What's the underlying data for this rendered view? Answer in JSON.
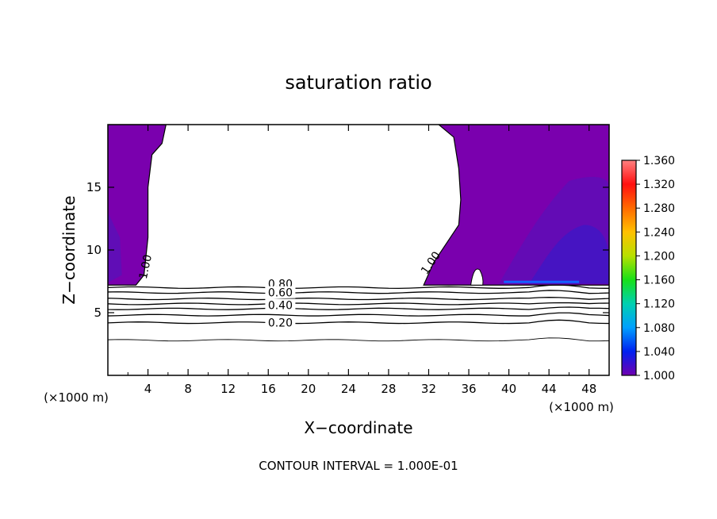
{
  "chart_data": {
    "type": "contour",
    "title": "saturation ratio",
    "xlabel": "X−coordinate",
    "ylabel": "Z−coordinate",
    "x_unit": "(×1000 m)",
    "footer": "CONTOUR INTERVAL = 1.000E-01",
    "xlim": [
      0,
      50
    ],
    "ylim": [
      0,
      20
    ],
    "xticks": [
      "4",
      "8",
      "12",
      "16",
      "20",
      "24",
      "28",
      "32",
      "36",
      "40",
      "44",
      "48"
    ],
    "xtick_values": [
      4,
      8,
      12,
      16,
      20,
      24,
      28,
      32,
      36,
      40,
      44,
      48
    ],
    "yticks": [
      "5",
      "10",
      "15"
    ],
    "ytick_values": [
      5,
      10,
      15
    ],
    "colorbar": {
      "labels": [
        "1.360",
        "1.320",
        "1.280",
        "1.240",
        "1.200",
        "1.160",
        "1.120",
        "1.080",
        "1.040",
        "1.000"
      ],
      "values": [
        1.36,
        1.32,
        1.28,
        1.24,
        1.2,
        1.16,
        1.12,
        1.08,
        1.04,
        1.0
      ],
      "colors": [
        "#ff8080",
        "#ff1010",
        "#ff6a00",
        "#ffc000",
        "#b8e000",
        "#18e018",
        "#00d0b0",
        "#00a0ff",
        "#0020f0",
        "#7000b0"
      ]
    },
    "contour_labels": [
      "0.80",
      "0.60",
      "0.40",
      "0.20",
      "1.00",
      "1.00"
    ],
    "fill_color": "#7a00ae",
    "fill_color_dark": "#5a10b8",
    "cloud_top_z": 7.2,
    "left_cloud_boundary": [
      [
        0,
        20
      ],
      [
        5.8,
        20
      ],
      [
        5.4,
        18.5
      ],
      [
        4.4,
        17.6
      ],
      [
        4.0,
        15.0
      ],
      [
        4.0,
        11.0
      ],
      [
        3.6,
        8.0
      ],
      [
        2.8,
        7.2
      ]
    ],
    "right_cloud_boundary": [
      [
        33,
        20
      ],
      [
        34.5,
        19
      ],
      [
        35,
        16.5
      ],
      [
        35.2,
        14
      ],
      [
        35,
        12
      ],
      [
        32.5,
        9
      ],
      [
        31.5,
        7.2
      ]
    ],
    "contour_levels": [
      {
        "level": "0.80",
        "z": 7.0
      },
      {
        "level": "0.70",
        "z": 6.6
      },
      {
        "level": "0.60",
        "z": 6.1
      },
      {
        "level": "0.50",
        "z": 5.7
      },
      {
        "level": "0.40",
        "z": 5.3
      },
      {
        "level": "0.30",
        "z": 4.8
      },
      {
        "level": "0.20",
        "z": 4.2
      },
      {
        "level": "0.10",
        "z": 2.8
      }
    ]
  }
}
